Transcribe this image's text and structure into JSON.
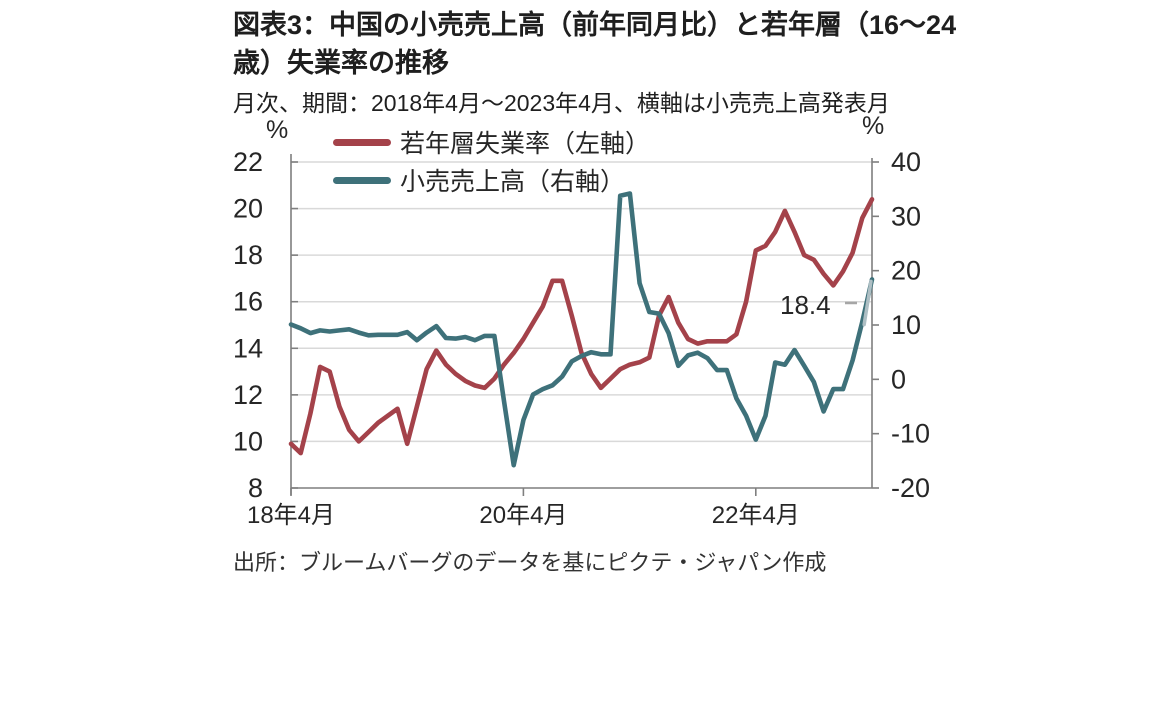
{
  "title": "図表3：中国の小売売上高（前年同月比）と若年層（16～24歳）失業率の推移",
  "subtitle": "月次、期間：2018年4月～2023年4月、横軸は小売売上高発表月",
  "source": "出所：ブルームバーグのデータを基にピクテ・ジャパン作成",
  "annotation": {
    "text": "18.4"
  },
  "colors": {
    "unemployment_line": "#A4424A",
    "retail_line": "#3E717A",
    "highlight": "#AEBFC4",
    "leader": "#A6A6A6",
    "grid": "#D9D9D9",
    "axis": "#7F7F7F",
    "text": "#262626"
  },
  "chart_data": {
    "type": "line",
    "frequency": "monthly",
    "start_month": "2018-04",
    "end_month": "2023-04",
    "x_tick_labels": [
      "18年4月",
      "20年4月",
      "22年4月"
    ],
    "x_tick_indices": [
      0,
      24,
      48
    ],
    "left_axis": {
      "unit": "%",
      "min": 8,
      "max": 22,
      "ticks": [
        22,
        20,
        18,
        16,
        14,
        12,
        10,
        8
      ]
    },
    "right_axis": {
      "unit": "%",
      "min": -20,
      "max": 40,
      "ticks": [
        40,
        30,
        20,
        10,
        0,
        -10,
        -20
      ]
    },
    "grid": true,
    "legend_position": "top-left",
    "series": [
      {
        "name": "若年層失業率（左軸）",
        "axis": "left",
        "color": "#A4424A",
        "values": [
          9.9,
          9.5,
          11.2,
          13.2,
          13.0,
          11.5,
          10.5,
          10.0,
          10.4,
          10.8,
          11.1,
          11.4,
          9.9,
          11.5,
          13.1,
          13.9,
          13.3,
          12.9,
          12.6,
          12.4,
          12.3,
          12.7,
          13.3,
          13.8,
          14.4,
          15.1,
          15.8,
          16.9,
          16.9,
          15.4,
          13.8,
          12.9,
          12.3,
          12.7,
          13.1,
          13.3,
          13.4,
          13.6,
          15.4,
          16.2,
          15.1,
          14.4,
          14.2,
          14.3,
          14.3,
          14.3,
          14.6,
          16.0,
          18.2,
          18.4,
          19.0,
          19.9,
          19.0,
          18.0,
          17.8,
          17.2,
          16.7,
          17.3,
          18.1,
          19.6,
          20.4
        ]
      },
      {
        "name": "小売売上高（右軸）",
        "axis": "right",
        "color": "#3E717A",
        "values": [
          10.1,
          9.4,
          8.5,
          9.0,
          8.8,
          9.0,
          9.2,
          8.6,
          8.1,
          8.2,
          8.2,
          8.2,
          8.7,
          7.2,
          8.6,
          9.8,
          7.6,
          7.5,
          7.8,
          7.2,
          8.0,
          8.0,
          -4.0,
          -15.8,
          -7.5,
          -2.8,
          -1.8,
          -1.1,
          0.5,
          3.3,
          4.3,
          5.0,
          4.6,
          4.6,
          33.8,
          34.2,
          17.7,
          12.4,
          12.1,
          8.5,
          2.5,
          4.4,
          4.9,
          3.9,
          1.7,
          1.7,
          -3.5,
          -6.7,
          -11.1,
          -6.7,
          3.1,
          2.7,
          5.4,
          2.5,
          -0.5,
          -5.9,
          -1.8,
          -1.8,
          3.5,
          10.6,
          18.4
        ]
      }
    ],
    "annotation": {
      "text": "18.4",
      "series": "小売売上高（右軸）",
      "point": "last"
    }
  }
}
